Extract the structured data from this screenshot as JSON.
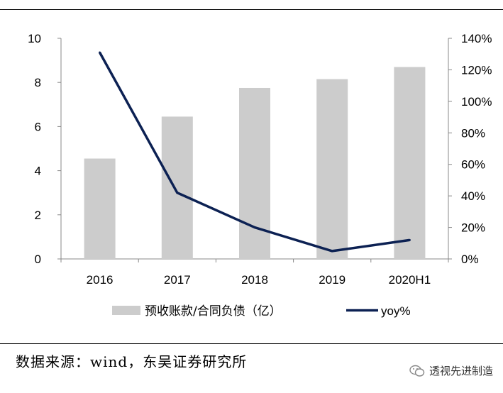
{
  "chart_data": {
    "type": "bar+line",
    "categories": [
      "2016",
      "2017",
      "2018",
      "2019",
      "2020H1"
    ],
    "series": [
      {
        "name": "预收账款/合同负债（亿）",
        "type": "bar",
        "axis": "left",
        "values": [
          4.55,
          6.45,
          7.75,
          8.15,
          8.7
        ],
        "color": "#cccccc"
      },
      {
        "name": "yoy%",
        "type": "line",
        "axis": "right",
        "values": [
          1.31,
          0.42,
          0.2,
          0.05,
          0.12
        ],
        "color": "#0c2153"
      }
    ],
    "y_left": {
      "min": 0,
      "max": 10,
      "ticks": [
        0,
        2,
        4,
        6,
        8,
        10
      ]
    },
    "y_right": {
      "min": 0,
      "max": 1.4,
      "ticks": [
        "0%",
        "20%",
        "40%",
        "60%",
        "80%",
        "100%",
        "120%",
        "140%"
      ]
    },
    "legend_position": "bottom",
    "grid": false
  },
  "footer": {
    "source": "数据来源：wind，东吴证券研究所",
    "watermark": "透视先进制造",
    "watermark_icon": "wechat-icon"
  }
}
